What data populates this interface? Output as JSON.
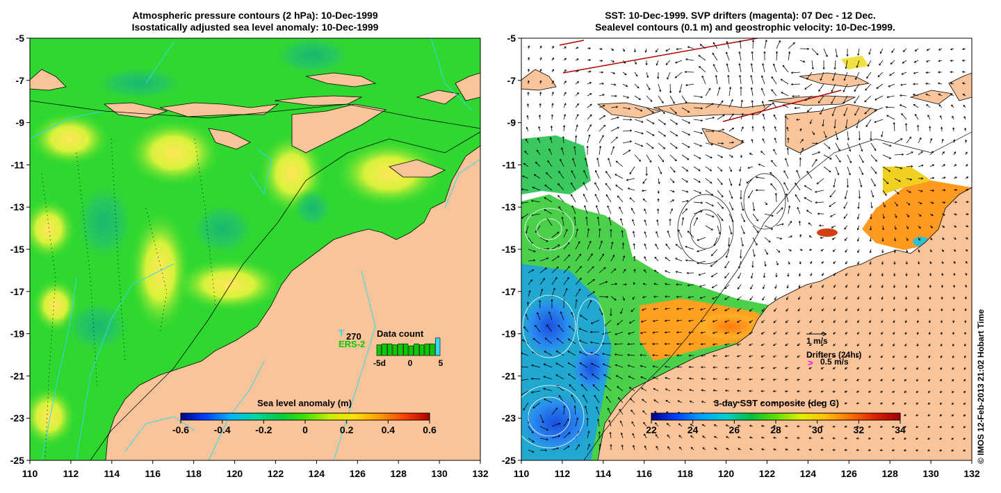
{
  "left_panel": {
    "title_line1": "Atmospheric pressure contours (2 hPa): 10-Dec-1999",
    "title_line2": "Isostatically adjusted sea level anomaly: 10-Dec-1999",
    "colorbar_label": "Sea level anomaly (m)",
    "colorbar_ticks": [
      "-0.6",
      "-0.4",
      "-0.2",
      "0",
      "0.2",
      "0.4",
      "0.6"
    ],
    "colorbar_colors": [
      "#00008c",
      "#0040ff",
      "#00b4ff",
      "#00d8a0",
      "#00cc44",
      "#40e000",
      "#c8f000",
      "#ffe000",
      "#ff9a00",
      "#ff4000",
      "#b00000"
    ],
    "legend_t": "T",
    "legend_number": "270",
    "legend_ers": "ERS-2",
    "data_count_title": "Data count",
    "data_count_ticks": [
      "-5d",
      "0",
      "5"
    ],
    "data_count_values": [
      0.55,
      0.6,
      0.6,
      0.55,
      0.6,
      0.6,
      0.5,
      0.6,
      0.55,
      0.6,
      0.6,
      0.9
    ]
  },
  "right_panel": {
    "title_line1": "SST: 10-Dec-1999. SVP drifters (magenta): 07 Dec - 12 Dec.",
    "title_line2": "Sealevel contours (0.1 m) and geostrophic velocity: 10-Dec-1999.",
    "colorbar_label": "3-day SST composite (deg C)",
    "colorbar_ticks": [
      "22",
      "24",
      "26",
      "28",
      "30",
      "32",
      "34"
    ],
    "colorbar_colors": [
      "#00008c",
      "#0040ff",
      "#00a0ff",
      "#00d0d0",
      "#00c040",
      "#60e000",
      "#e0f000",
      "#ffc000",
      "#ff7000",
      "#e02000",
      "#a00000"
    ],
    "scale_label": "1 m/s",
    "drifters_label": "Drifters (24hr)",
    "drifter_speed": "0.5 m/s",
    "drifter_marker": ">"
  },
  "axes": {
    "x_ticks": [
      "110",
      "112",
      "114",
      "116",
      "118",
      "120",
      "122",
      "124",
      "126",
      "128",
      "130",
      "132"
    ],
    "y_ticks": [
      "-5",
      "-7",
      "-9",
      "-11",
      "-13",
      "-15",
      "-17",
      "-19",
      "-21",
      "-23",
      "-25"
    ]
  },
  "credit": "© IMOS 12-Feb-2013 21:02 Hobart Time",
  "colors": {
    "land": "#f9c49a",
    "ocean_green": "#2fd82f",
    "sst_white": "#ffffff"
  }
}
